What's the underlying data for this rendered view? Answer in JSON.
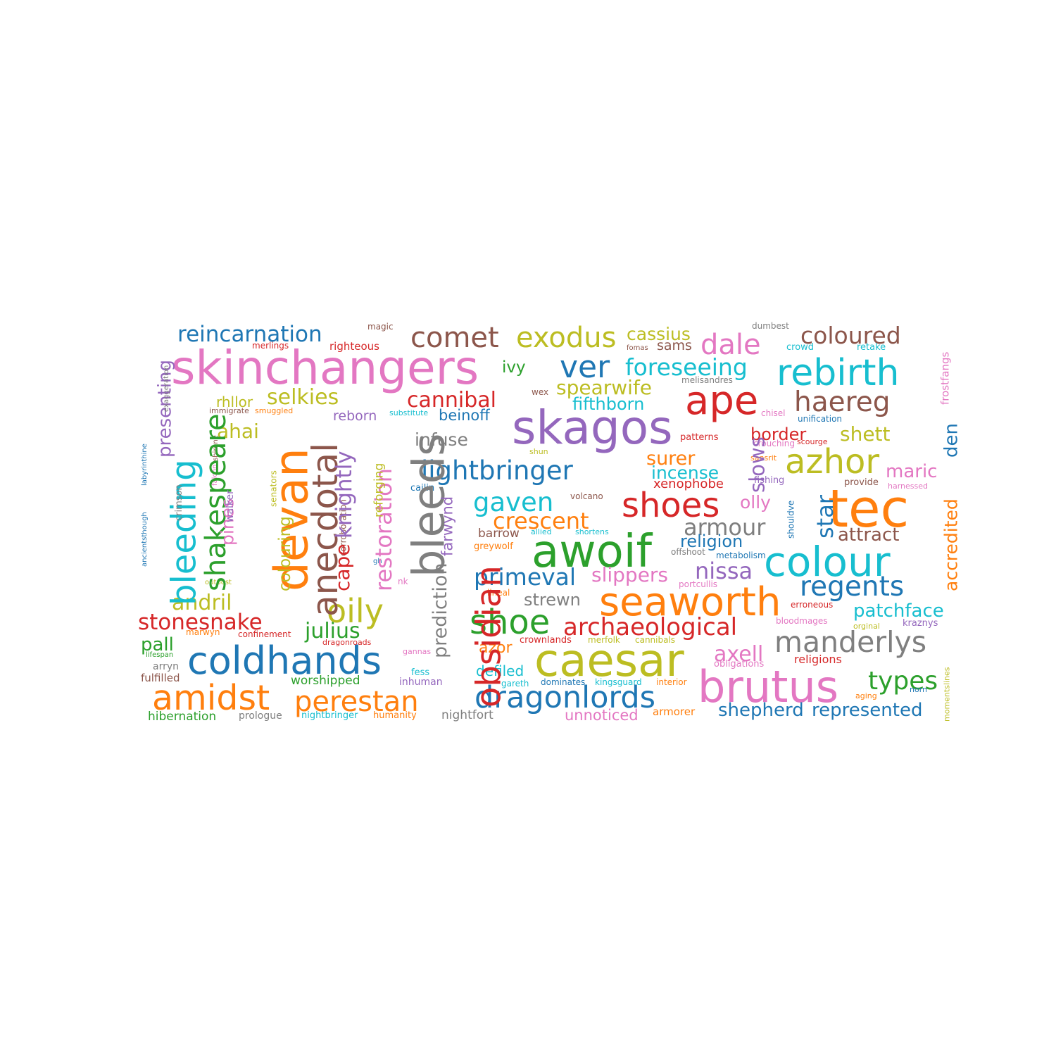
{
  "palette": {
    "blue": "#1f77b4",
    "orange": "#ff7f0e",
    "green": "#2ca02c",
    "red": "#d62728",
    "purple": "#9467bd",
    "brown": "#8c564b",
    "pink": "#e377c2",
    "gray": "#7f7f7f",
    "olive": "#bcbd22",
    "cyan": "#17becf"
  },
  "words": [
    {
      "text": "skinchangers",
      "color": "pink"
    },
    {
      "text": "reincarnation",
      "color": "blue"
    },
    {
      "text": "magic",
      "color": "brown"
    },
    {
      "text": "merlings",
      "color": "red"
    },
    {
      "text": "righteous",
      "color": "red"
    },
    {
      "text": "comet",
      "color": "brown"
    },
    {
      "text": "exodus",
      "color": "olive"
    },
    {
      "text": "cassius",
      "color": "olive"
    },
    {
      "text": "fomas",
      "color": "brown"
    },
    {
      "text": "sams",
      "color": "brown"
    },
    {
      "text": "dale",
      "color": "pink"
    },
    {
      "text": "dumbest",
      "color": "gray"
    },
    {
      "text": "coloured",
      "color": "brown"
    },
    {
      "text": "crowd",
      "color": "cyan"
    },
    {
      "text": "retake",
      "color": "cyan"
    },
    {
      "text": "frostfangs",
      "color": "pink"
    },
    {
      "text": "ver",
      "color": "blue"
    },
    {
      "text": "foreseeing",
      "color": "cyan"
    },
    {
      "text": "rebirth",
      "color": "cyan"
    },
    {
      "text": "ivy",
      "color": "green"
    },
    {
      "text": "spearwife",
      "color": "olive"
    },
    {
      "text": "melisandres",
      "color": "gray"
    },
    {
      "text": "wex",
      "color": "brown"
    },
    {
      "text": "cannibal",
      "color": "red"
    },
    {
      "text": "fifthborn",
      "color": "cyan"
    },
    {
      "text": "ape",
      "color": "red"
    },
    {
      "text": "haereg",
      "color": "brown"
    },
    {
      "text": "selkies",
      "color": "olive"
    },
    {
      "text": "rhllor",
      "color": "olive"
    },
    {
      "text": "immigrate",
      "color": "brown"
    },
    {
      "text": "smuggled",
      "color": "orange"
    },
    {
      "text": "substitute",
      "color": "cyan"
    },
    {
      "text": "reborn",
      "color": "purple"
    },
    {
      "text": "beinoff",
      "color": "blue"
    },
    {
      "text": "skagos",
      "color": "purple"
    },
    {
      "text": "chisel",
      "color": "pink"
    },
    {
      "text": "unification",
      "color": "blue"
    },
    {
      "text": "border",
      "color": "red"
    },
    {
      "text": "shett",
      "color": "olive"
    },
    {
      "text": "den",
      "color": "blue"
    },
    {
      "text": "ahai",
      "color": "olive"
    },
    {
      "text": "infuse",
      "color": "gray"
    },
    {
      "text": "patterns",
      "color": "red"
    },
    {
      "text": "crouching",
      "color": "pink"
    },
    {
      "text": "scourge",
      "color": "red"
    },
    {
      "text": "shun",
      "color": "olive"
    },
    {
      "text": "azhor",
      "color": "olive"
    },
    {
      "text": "maric",
      "color": "pink"
    },
    {
      "text": "lightbringer",
      "color": "blue"
    },
    {
      "text": "surer",
      "color": "orange"
    },
    {
      "text": "incense",
      "color": "cyan"
    },
    {
      "text": "sansrit",
      "color": "orange"
    },
    {
      "text": "fishing",
      "color": "purple"
    },
    {
      "text": "provide",
      "color": "brown"
    },
    {
      "text": "harnessed",
      "color": "pink"
    },
    {
      "text": "cailin",
      "color": "blue"
    },
    {
      "text": "xenophobe",
      "color": "red"
    },
    {
      "text": "gaven",
      "color": "cyan"
    },
    {
      "text": "volcano",
      "color": "brown"
    },
    {
      "text": "shoes",
      "color": "red"
    },
    {
      "text": "olly",
      "color": "pink"
    },
    {
      "text": "tec",
      "color": "orange"
    },
    {
      "text": "crescent",
      "color": "orange"
    },
    {
      "text": "armour",
      "color": "gray"
    },
    {
      "text": "barrow",
      "color": "brown"
    },
    {
      "text": "allied",
      "color": "cyan"
    },
    {
      "text": "shortens",
      "color": "cyan"
    },
    {
      "text": "attract",
      "color": "brown"
    },
    {
      "text": "religion",
      "color": "blue"
    },
    {
      "text": "greywolf",
      "color": "orange"
    },
    {
      "text": "awoif",
      "color": "green"
    },
    {
      "text": "offshoot",
      "color": "gray"
    },
    {
      "text": "metabolism",
      "color": "blue"
    },
    {
      "text": "colour",
      "color": "cyan"
    },
    {
      "text": "primeval",
      "color": "blue"
    },
    {
      "text": "slippers",
      "color": "pink"
    },
    {
      "text": "nissa",
      "color": "purple"
    },
    {
      "text": "portcullis",
      "color": "pink"
    },
    {
      "text": "regents",
      "color": "blue"
    },
    {
      "text": "strewn",
      "color": "gray"
    },
    {
      "text": "lineal",
      "color": "orange"
    },
    {
      "text": "seaworth",
      "color": "orange"
    },
    {
      "text": "erroneous",
      "color": "red"
    },
    {
      "text": "patchface",
      "color": "cyan"
    },
    {
      "text": "shoe",
      "color": "green"
    },
    {
      "text": "archaeological",
      "color": "red"
    },
    {
      "text": "bloodmages",
      "color": "pink"
    },
    {
      "text": "orginal",
      "color": "olive"
    },
    {
      "text": "kraznys",
      "color": "purple"
    },
    {
      "text": "azor",
      "color": "orange"
    },
    {
      "text": "crownlands",
      "color": "red"
    },
    {
      "text": "merfolk",
      "color": "olive"
    },
    {
      "text": "cannibals",
      "color": "olive"
    },
    {
      "text": "manderlys",
      "color": "gray"
    },
    {
      "text": "caesar",
      "color": "olive"
    },
    {
      "text": "axell",
      "color": "pink"
    },
    {
      "text": "religions",
      "color": "red"
    },
    {
      "text": "obligations",
      "color": "pink"
    },
    {
      "text": "defiled",
      "color": "cyan"
    },
    {
      "text": "brutus",
      "color": "pink"
    },
    {
      "text": "types",
      "color": "green"
    },
    {
      "text": "gareth",
      "color": "cyan"
    },
    {
      "text": "dominates",
      "color": "blue"
    },
    {
      "text": "kingsguard",
      "color": "cyan"
    },
    {
      "text": "interior",
      "color": "orange"
    },
    {
      "text": "aging",
      "color": "orange"
    },
    {
      "text": "norn",
      "color": "blue"
    },
    {
      "text": "dragonlords",
      "color": "blue"
    },
    {
      "text": "unnoticed",
      "color": "pink"
    },
    {
      "text": "armorer",
      "color": "orange"
    },
    {
      "text": "shepherd",
      "color": "blue"
    },
    {
      "text": "represented",
      "color": "blue"
    },
    {
      "text": "momentslines",
      "color": "olive"
    },
    {
      "text": "coldhands",
      "color": "blue"
    },
    {
      "text": "amidst",
      "color": "orange"
    },
    {
      "text": "perestan",
      "color": "orange"
    },
    {
      "text": "stonesnake",
      "color": "red"
    },
    {
      "text": "julius",
      "color": "green"
    },
    {
      "text": "andril",
      "color": "olive"
    },
    {
      "text": "oily",
      "color": "olive"
    },
    {
      "text": "pall",
      "color": "green"
    },
    {
      "text": "marwyn",
      "color": "orange"
    },
    {
      "text": "confinement",
      "color": "red"
    },
    {
      "text": "dragonroads",
      "color": "red"
    },
    {
      "text": "lifespan",
      "color": "green"
    },
    {
      "text": "arryn",
      "color": "gray"
    },
    {
      "text": "fulfilled",
      "color": "brown"
    },
    {
      "text": "worshipped",
      "color": "green"
    },
    {
      "text": "fess",
      "color": "cyan"
    },
    {
      "text": "inhuman",
      "color": "purple"
    },
    {
      "text": "gannas",
      "color": "pink"
    },
    {
      "text": "hibernation",
      "color": "green"
    },
    {
      "text": "prologue",
      "color": "gray"
    },
    {
      "text": "nightbringer",
      "color": "cyan"
    },
    {
      "text": "humanity",
      "color": "orange"
    },
    {
      "text": "nightfort",
      "color": "gray"
    },
    {
      "text": "outpost",
      "color": "olive"
    },
    {
      "text": "gh",
      "color": "blue"
    },
    {
      "text": "nk",
      "color": "pink"
    },
    {
      "text": "shouldve",
      "color": "blue"
    },
    {
      "text": "bleeding",
      "color": "cyan"
    },
    {
      "text": "presenting",
      "color": "purple"
    },
    {
      "text": "exaggeration",
      "color": "gray"
    },
    {
      "text": "labyrinthine",
      "color": "blue"
    },
    {
      "text": "ancientsthough",
      "color": "blue"
    },
    {
      "text": "shirene",
      "color": "brown"
    },
    {
      "text": "falcon",
      "color": "pink"
    },
    {
      "text": "crimson",
      "color": "gray"
    },
    {
      "text": "shakespeare",
      "color": "green"
    },
    {
      "text": "pines",
      "color": "pink"
    },
    {
      "text": "walker",
      "color": "purple"
    },
    {
      "text": "devan",
      "color": "orange"
    },
    {
      "text": "senators",
      "color": "olive"
    },
    {
      "text": "colouring",
      "color": "olive"
    },
    {
      "text": "anecdotal",
      "color": "brown"
    },
    {
      "text": "corroboration",
      "color": "brown"
    },
    {
      "text": "cape",
      "color": "red"
    },
    {
      "text": "knightly",
      "color": "purple"
    },
    {
      "text": "restoration",
      "color": "pink"
    },
    {
      "text": "reforging",
      "color": "olive"
    },
    {
      "text": "bleeds",
      "color": "gray"
    },
    {
      "text": "prediction",
      "color": "gray"
    },
    {
      "text": "farwynd",
      "color": "purple"
    },
    {
      "text": "obsidian",
      "color": "red"
    },
    {
      "text": "slows",
      "color": "purple"
    },
    {
      "text": "star",
      "color": "blue"
    },
    {
      "text": "accredited",
      "color": "orange"
    }
  ]
}
